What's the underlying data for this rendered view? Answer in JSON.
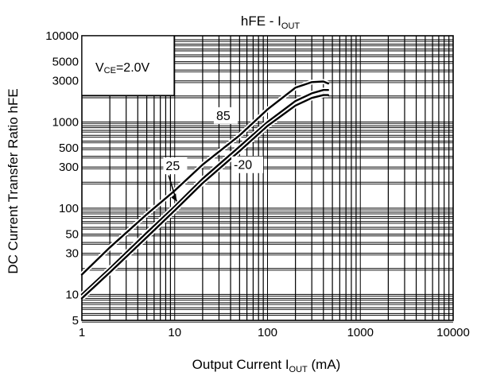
{
  "chart_data": {
    "type": "line",
    "title": "hFE - I_OUT",
    "title_parts": {
      "main": "hFE - I",
      "sub": "OUT"
    },
    "xlabel": "Output Current I_OUT (mA)",
    "xlabel_parts": {
      "pre": "Output Current I",
      "sub": "OUT",
      "post": " (mA)"
    },
    "ylabel": "DC Current Transfer Ratio hFE",
    "x_scale": "log",
    "y_scale": "log",
    "xlim": [
      1,
      10000
    ],
    "ylim": [
      5,
      10000
    ],
    "grid": true,
    "x_ticks": [
      {
        "value": 1,
        "label": "1"
      },
      {
        "value": 10,
        "label": "10"
      },
      {
        "value": 100,
        "label": "100"
      },
      {
        "value": 1000,
        "label": "1000"
      },
      {
        "value": 10000,
        "label": "10000"
      }
    ],
    "y_ticks": [
      {
        "value": 5,
        "label": "5"
      },
      {
        "value": 10,
        "label": "10"
      },
      {
        "value": 30,
        "label": "30"
      },
      {
        "value": 50,
        "label": "50"
      },
      {
        "value": 100,
        "label": "100"
      },
      {
        "value": 300,
        "label": "300"
      },
      {
        "value": 500,
        "label": "500"
      },
      {
        "value": 1000,
        "label": "1000"
      },
      {
        "value": 3000,
        "label": "3000"
      },
      {
        "value": 5000,
        "label": "5000"
      },
      {
        "value": 10000,
        "label": "10000"
      }
    ],
    "condition_box": {
      "pre": "V",
      "sub": "CE",
      "post": "=2.0V"
    },
    "series": [
      {
        "name": "85",
        "x": [
          1,
          2,
          5,
          10,
          20,
          50,
          100,
          200,
          300,
          400,
          450
        ],
        "y": [
          17,
          35,
          85,
          160,
          320,
          700,
          1400,
          2500,
          2900,
          2950,
          2800
        ]
      },
      {
        "name": "25",
        "x": [
          1,
          2,
          5,
          10,
          20,
          50,
          100,
          200,
          300,
          400,
          450
        ],
        "y": [
          10,
          20,
          52,
          105,
          220,
          520,
          1000,
          1750,
          2150,
          2350,
          2350
        ]
      },
      {
        "name": "-20",
        "x": [
          1,
          2,
          5,
          10,
          20,
          50,
          100,
          200,
          300,
          400,
          450
        ],
        "y": [
          9,
          18,
          46,
          94,
          195,
          460,
          900,
          1550,
          1900,
          2050,
          2050
        ]
      }
    ]
  }
}
